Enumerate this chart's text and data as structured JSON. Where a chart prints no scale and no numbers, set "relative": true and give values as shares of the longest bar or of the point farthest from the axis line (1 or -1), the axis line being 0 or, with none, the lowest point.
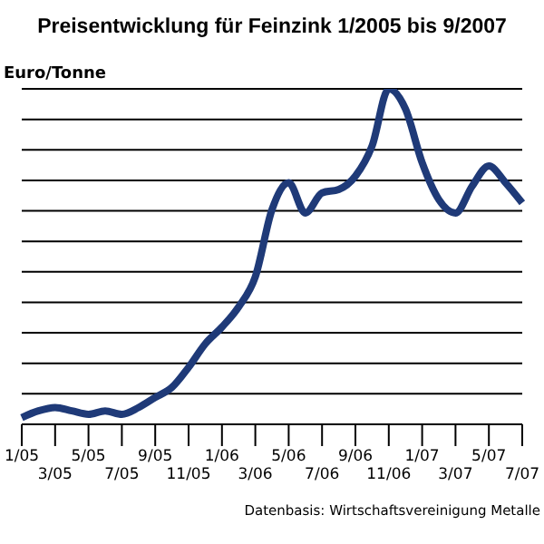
{
  "chart_data": {
    "type": "line",
    "title": "Preisentwicklung für Feinzink 1/2005 bis 9/2007",
    "ylabel": "Euro/Tonne",
    "annotations": [
      "Datenbasis: Wirtschaftsvereinigung Metalle"
    ],
    "relative": true,
    "grid": "y",
    "categories": [
      "1/05",
      null,
      "3/05",
      null,
      "5/05",
      null,
      "7/05",
      null,
      "9/05",
      null,
      "11/05",
      null,
      "1/06",
      null,
      "3/06",
      null,
      "5/06",
      null,
      "7/06",
      null,
      "9/06",
      null,
      "11/06",
      null,
      "1/07",
      null,
      "3/07",
      null,
      "5/07",
      null,
      "7/07"
    ],
    "series": [
      {
        "color": "#1f3a78",
        "values": [
          0.02,
          0.04,
          0.05,
          0.04,
          0.03,
          0.04,
          0.03,
          0.05,
          0.08,
          0.11,
          0.17,
          0.24,
          0.29,
          0.35,
          0.44,
          0.64,
          0.72,
          0.63,
          0.69,
          0.7,
          0.74,
          0.83,
          1,
          0.94,
          0.78,
          0.67,
          0.63,
          0.71,
          0.77,
          0.72,
          0.66
        ]
      }
    ]
  }
}
